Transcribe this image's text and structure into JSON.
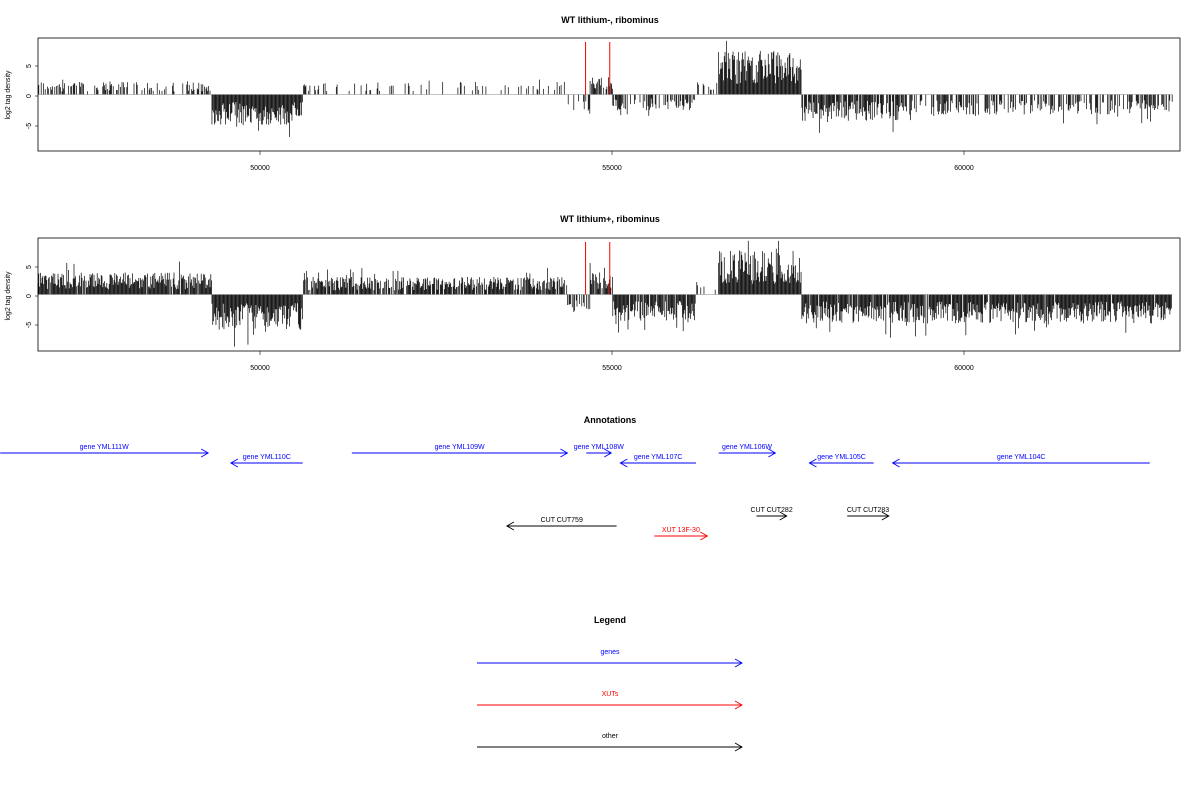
{
  "colors": {
    "genes": "#0000ff",
    "xuts": "#ff0000",
    "other": "#000000",
    "highlight": "#ff0000"
  },
  "chart_data": [
    {
      "type": "bar",
      "title": "WT lithium-, ribominus",
      "ylabel": "log2 tag density",
      "xlim": [
        47500,
        62600
      ],
      "ylim": [
        -9.3,
        9.3
      ],
      "xticks": [
        "50000",
        "55000",
        "60000"
      ],
      "yticks": [
        "5",
        "0",
        "-5"
      ],
      "highlights_x": [
        54740,
        55060
      ],
      "regions": [
        {
          "x0": 47500,
          "x1": 49800,
          "mean": 1.5,
          "density": 0.45,
          "sign": 1
        },
        {
          "x0": 49800,
          "x1": 51000,
          "mean": -3.5,
          "density": 1.0,
          "sign": -1
        },
        {
          "x0": 51000,
          "x1": 54500,
          "mean": 1.5,
          "density": 0.18,
          "sign": 1
        },
        {
          "x0": 54500,
          "x1": 54800,
          "mean": -2.0,
          "density": 0.25,
          "sign": -1
        },
        {
          "x0": 54800,
          "x1": 55100,
          "mean": 2.0,
          "density": 0.8,
          "sign": 1
        },
        {
          "x0": 55100,
          "x1": 56200,
          "mean": -1.8,
          "density": 0.5,
          "sign": -1
        },
        {
          "x0": 56200,
          "x1": 56500,
          "mean": 1.5,
          "density": 0.2,
          "sign": 1
        },
        {
          "x0": 56500,
          "x1": 57600,
          "mean": 5.0,
          "density": 1.0,
          "sign": 1
        },
        {
          "x0": 57600,
          "x1": 58900,
          "mean": -3.0,
          "density": 0.85,
          "sign": -1
        },
        {
          "x0": 58900,
          "x1": 62500,
          "mean": -2.3,
          "density": 0.55,
          "sign": -1
        }
      ]
    },
    {
      "type": "bar",
      "title": "WT lithium+, ribominus",
      "ylabel": "log2 tag density",
      "xlim": [
        47500,
        62600
      ],
      "ylim": [
        -9.3,
        9.3
      ],
      "xticks": [
        "50000",
        "55000",
        "60000"
      ],
      "yticks": [
        "5",
        "0",
        "-5"
      ],
      "highlights_x": [
        54740,
        55060
      ],
      "regions": [
        {
          "x0": 47500,
          "x1": 49800,
          "mean": 2.5,
          "density": 0.95,
          "sign": 1
        },
        {
          "x0": 49800,
          "x1": 51000,
          "mean": -4.0,
          "density": 1.0,
          "sign": -1
        },
        {
          "x0": 51000,
          "x1": 54500,
          "mean": 2.0,
          "density": 0.85,
          "sign": 1
        },
        {
          "x0": 54500,
          "x1": 54800,
          "mean": -2.5,
          "density": 0.6,
          "sign": -1
        },
        {
          "x0": 54800,
          "x1": 55100,
          "mean": 2.5,
          "density": 0.9,
          "sign": 1
        },
        {
          "x0": 55100,
          "x1": 56200,
          "mean": -3.0,
          "density": 0.9,
          "sign": -1
        },
        {
          "x0": 56200,
          "x1": 56500,
          "mean": 1.5,
          "density": 0.3,
          "sign": 1
        },
        {
          "x0": 56500,
          "x1": 57600,
          "mean": 5.0,
          "density": 1.0,
          "sign": 1
        },
        {
          "x0": 57600,
          "x1": 62500,
          "mean": -3.3,
          "density": 0.95,
          "sign": -1
        }
      ]
    }
  ],
  "annotations": {
    "title": "Annotations",
    "items": [
      {
        "label": "gene YML111W",
        "x0": 47000,
        "x1": 49750,
        "dir": 1,
        "row": 0,
        "cat": "genes"
      },
      {
        "label": "gene YML110C",
        "x0": 50050,
        "x1": 51000,
        "dir": -1,
        "row": 1,
        "cat": "genes"
      },
      {
        "label": "gene YML109W",
        "x0": 51650,
        "x1": 54500,
        "dir": 1,
        "row": 0,
        "cat": "genes"
      },
      {
        "label": "gene YML108W",
        "x0": 54750,
        "x1": 55080,
        "dir": 1,
        "row": 0,
        "cat": "genes"
      },
      {
        "label": "gene YML107C",
        "x0": 55200,
        "x1": 56200,
        "dir": -1,
        "row": 1,
        "cat": "genes"
      },
      {
        "label": "gene YML106W",
        "x0": 56500,
        "x1": 57250,
        "dir": 1,
        "row": 0,
        "cat": "genes"
      },
      {
        "label": "gene YML105C",
        "x0": 57700,
        "x1": 58550,
        "dir": -1,
        "row": 1,
        "cat": "genes"
      },
      {
        "label": "gene YML104C",
        "x0": 58800,
        "x1": 62200,
        "dir": -1,
        "row": 1,
        "cat": "genes"
      },
      {
        "label": "CUT CUT759",
        "x0": 53700,
        "x1": 55150,
        "dir": -1,
        "row": 2,
        "cat": "other"
      },
      {
        "label": "CUT CUT282",
        "x0": 57000,
        "x1": 57400,
        "dir": 1,
        "row": 3,
        "cat": "other"
      },
      {
        "label": "CUT CUT283",
        "x0": 58200,
        "x1": 58750,
        "dir": 1,
        "row": 3,
        "cat": "other"
      },
      {
        "label": "XUT 13F-30",
        "x0": 55650,
        "x1": 56350,
        "dir": 1,
        "row": 4,
        "cat": "xuts"
      }
    ]
  },
  "legend": {
    "title": "Legend",
    "items": [
      {
        "label": "genes",
        "cat": "genes"
      },
      {
        "label": "XUTs",
        "cat": "xuts"
      },
      {
        "label": "other",
        "cat": "other"
      }
    ]
  }
}
